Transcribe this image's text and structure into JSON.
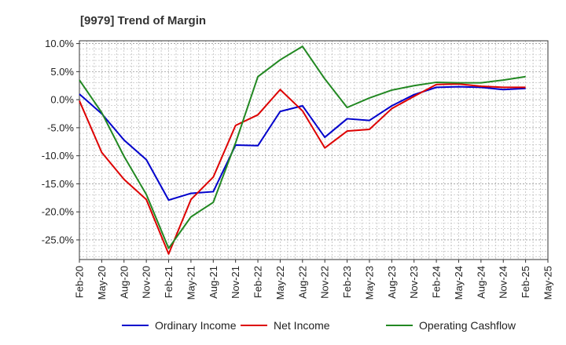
{
  "chart_data": {
    "type": "line",
    "title": "[9979]  Trend of Margin",
    "xlabel": "",
    "ylabel": "",
    "ylim": [
      -28.5,
      10.5
    ],
    "yticks": [
      10,
      5,
      0,
      -5,
      -10,
      -15,
      -20,
      -25
    ],
    "y_tick_labels": [
      "10.0%",
      "5.0%",
      "0.0%",
      "-5.0%",
      "-10.0%",
      "-15.0%",
      "-20.0%",
      "-25.0%"
    ],
    "x": [
      "Feb-20",
      "May-20",
      "Aug-20",
      "Nov-20",
      "Feb-21",
      "May-21",
      "Aug-21",
      "Nov-21",
      "Feb-22",
      "May-22",
      "Aug-22",
      "Nov-22",
      "Feb-23",
      "May-23",
      "Aug-23",
      "Nov-23",
      "Feb-24",
      "May-24",
      "Aug-24",
      "Nov-24",
      "Feb-25",
      "May-25"
    ],
    "grid": true,
    "legend_position": "bottom",
    "series": [
      {
        "name": "Ordinary Income",
        "color": "#0000cc",
        "values": [
          1.0,
          -2.5,
          -7.2,
          -10.7,
          -17.9,
          -16.7,
          -16.4,
          -8.1,
          -8.2,
          -2.1,
          -1.1,
          -6.7,
          -3.4,
          -3.7,
          -1.1,
          0.9,
          2.2,
          2.3,
          2.2,
          1.8,
          2.0,
          null
        ]
      },
      {
        "name": "Net Income",
        "color": "#dd0000",
        "values": [
          -0.2,
          -9.4,
          -14.2,
          -17.8,
          -27.5,
          -17.8,
          -13.8,
          -4.6,
          -2.7,
          1.8,
          -2.0,
          -8.6,
          -5.6,
          -5.3,
          -1.6,
          0.6,
          2.7,
          2.8,
          2.4,
          2.2,
          2.2,
          null
        ]
      },
      {
        "name": "Operating Cashflow",
        "color": "#228822",
        "values": [
          3.5,
          -2.3,
          -10.1,
          -16.9,
          -26.5,
          -20.9,
          -18.3,
          -7.7,
          4.1,
          7.1,
          9.5,
          3.7,
          -1.4,
          0.3,
          1.7,
          2.5,
          3.1,
          3.0,
          3.0,
          3.5,
          4.1,
          null
        ]
      }
    ]
  }
}
